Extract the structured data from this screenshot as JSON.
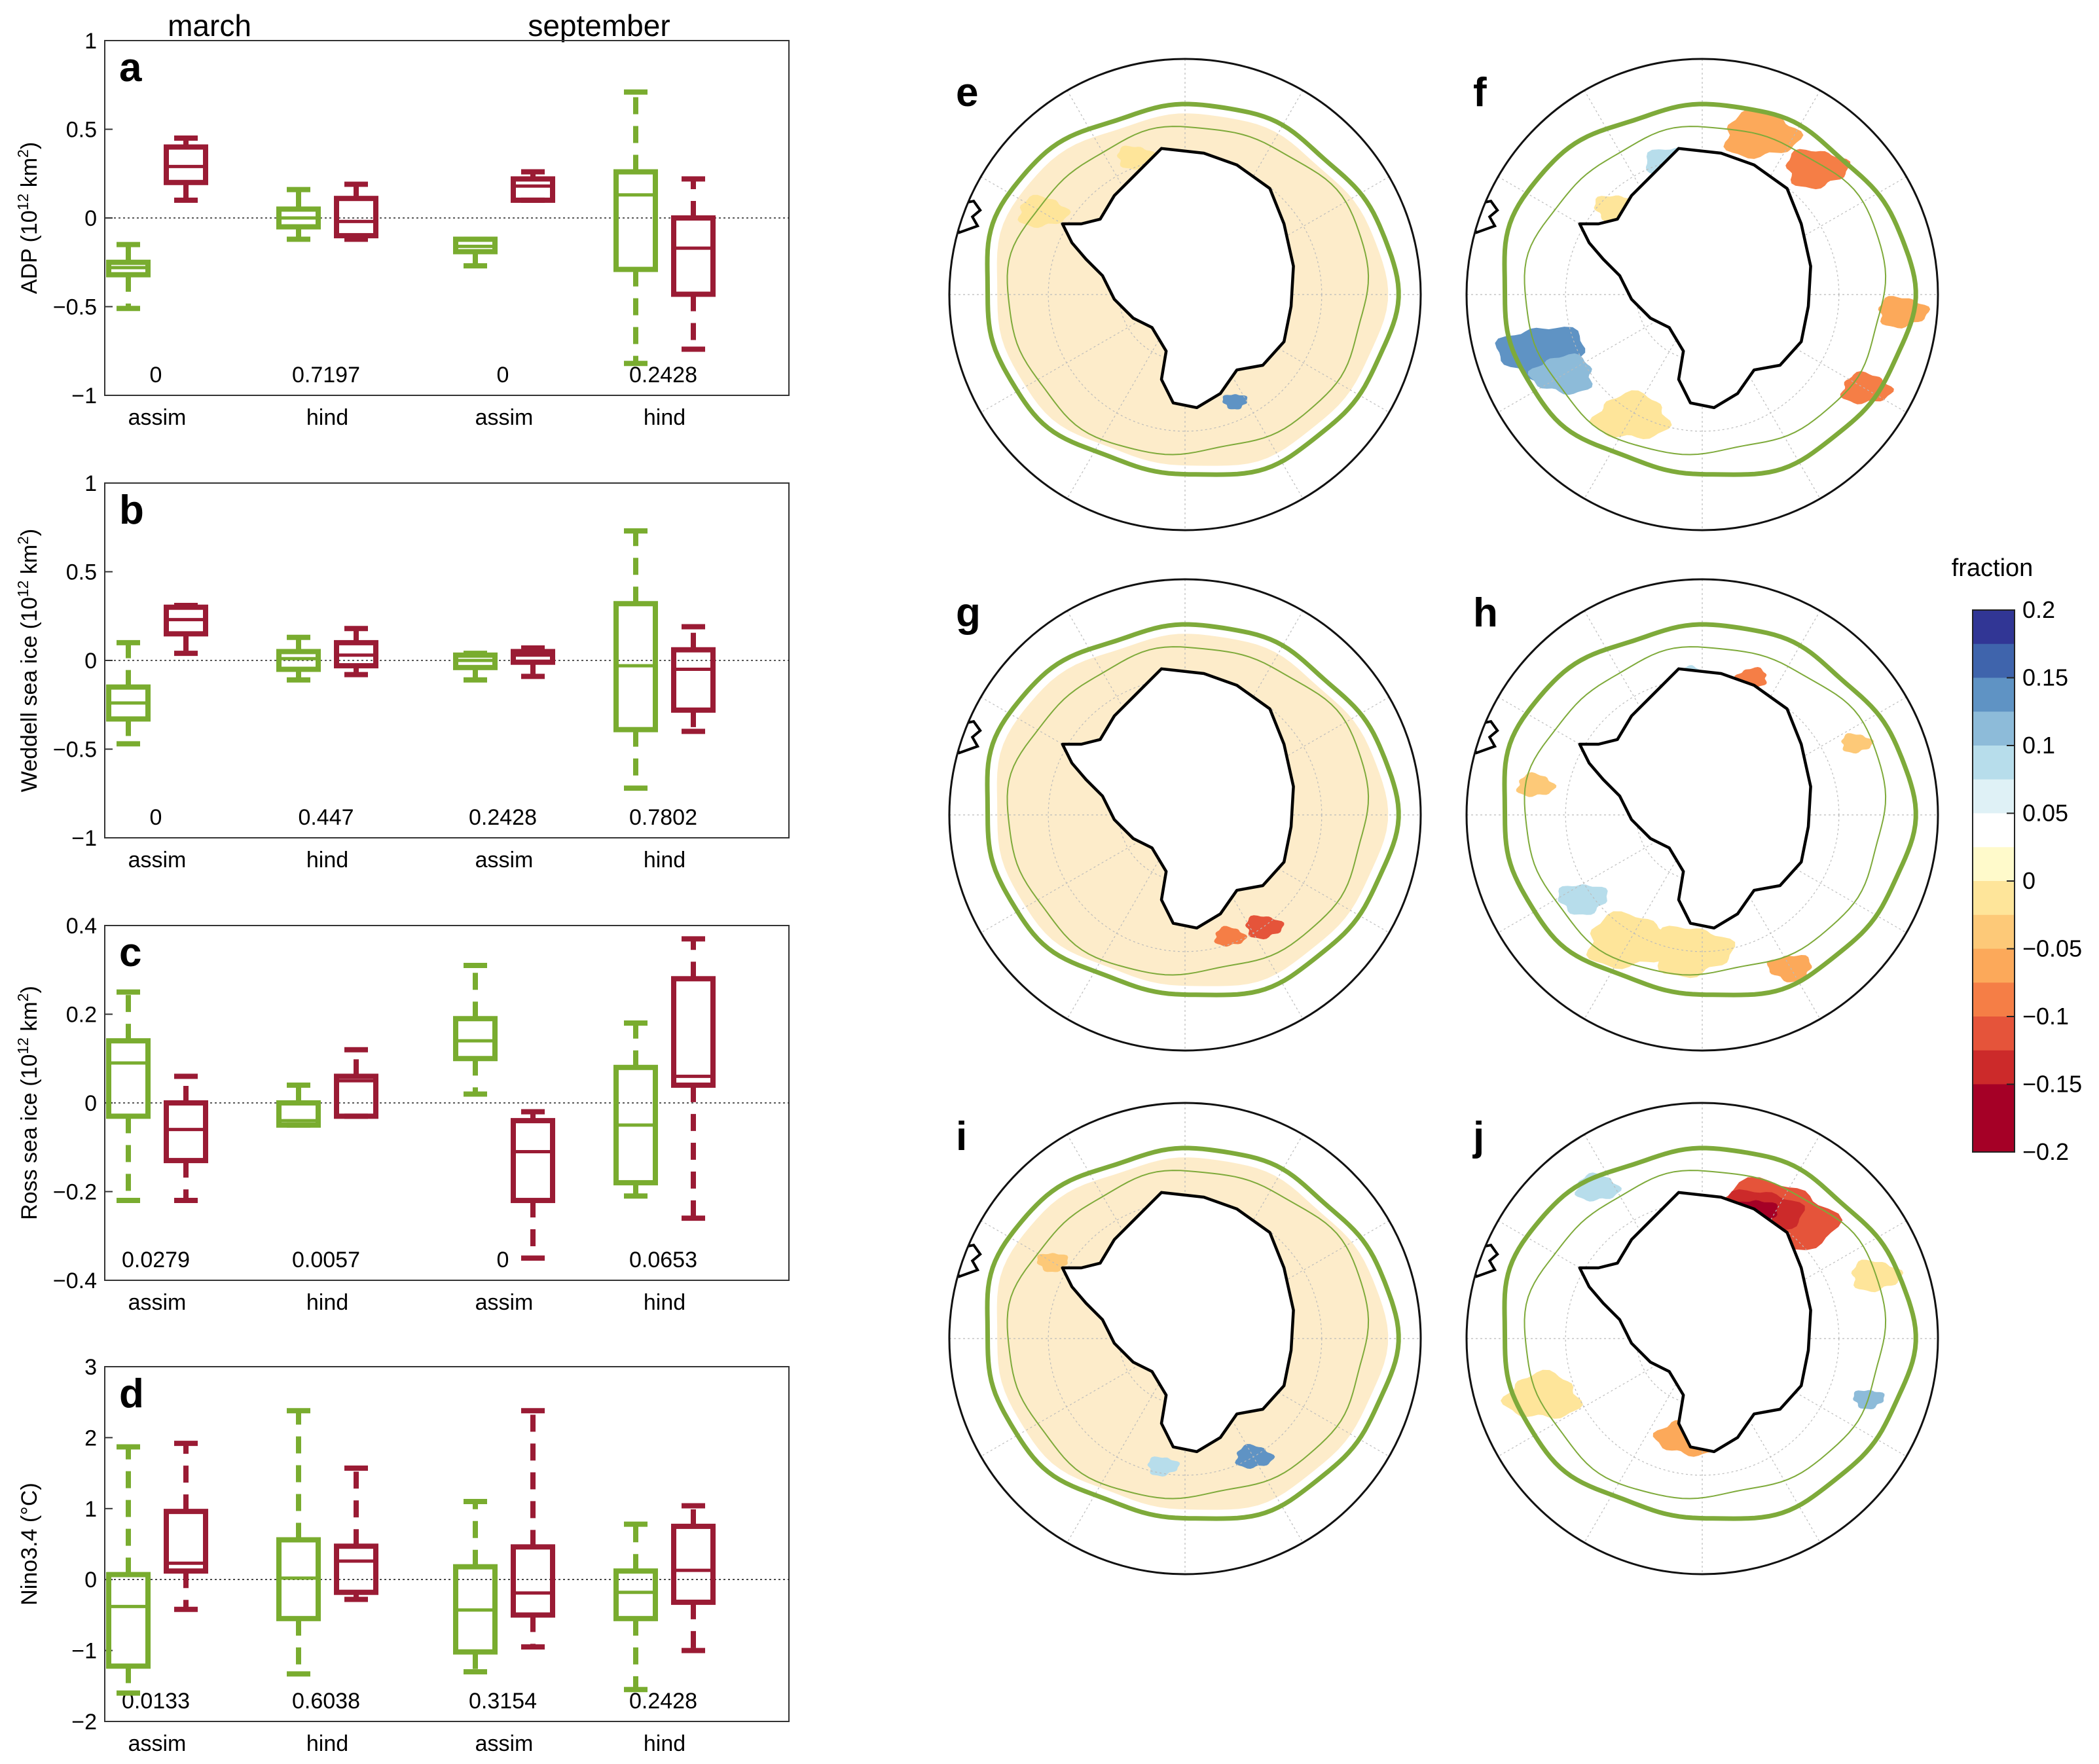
{
  "header": {
    "march": "march",
    "september": "september"
  },
  "colors": {
    "march": "#79AC2F",
    "september": "#9A1B34",
    "land": "#000000",
    "ice_edge": "#7EAA3A",
    "grid": "#BBBBBB"
  },
  "chart_data": [
    {
      "type": "box",
      "panel": "a",
      "ylabel_main": "ADP (10",
      "ylabel_sup": "12",
      "ylabel_unit": " km",
      "ylabel_sup2": "2",
      "ylabel_end": ")",
      "ylim": [
        -1,
        1
      ],
      "yticks": [
        -1,
        -0.5,
        0,
        0.5,
        1
      ],
      "ytick_labels": [
        "−1",
        "−0.5",
        "0",
        "0.5",
        "1"
      ],
      "groups": [
        "assim",
        "hind",
        "assim",
        "hind"
      ],
      "pvalues": [
        "0",
        "0.7197",
        "0",
        "0.2428"
      ],
      "series": [
        {
          "name": "march",
          "boxes": [
            {
              "min": -0.51,
              "q1": -0.32,
              "median": -0.28,
              "q3": -0.25,
              "max": -0.15
            },
            {
              "min": -0.12,
              "q1": -0.05,
              "median": 0.0,
              "q3": 0.05,
              "max": 0.16
            },
            {
              "min": -0.27,
              "q1": -0.19,
              "median": -0.16,
              "q3": -0.12,
              "max": -0.12
            },
            {
              "min": -0.82,
              "q1": -0.29,
              "median": 0.13,
              "q3": 0.26,
              "max": 0.71
            }
          ]
        },
        {
          "name": "september",
          "boxes": [
            {
              "min": 0.1,
              "q1": 0.2,
              "median": 0.29,
              "q3": 0.4,
              "max": 0.45
            },
            {
              "min": -0.12,
              "q1": -0.1,
              "median": -0.02,
              "q3": 0.11,
              "max": 0.19
            },
            {
              "min": 0.1,
              "q1": 0.1,
              "median": 0.18,
              "q3": 0.22,
              "max": 0.26
            },
            {
              "min": -0.74,
              "q1": -0.43,
              "median": -0.17,
              "q3": 0.0,
              "max": 0.22
            }
          ]
        }
      ]
    },
    {
      "type": "box",
      "panel": "b",
      "ylabel_main": "Weddell sea ice (10",
      "ylabel_sup": "12",
      "ylabel_unit": " km",
      "ylabel_sup2": "2",
      "ylabel_end": ")",
      "ylim": [
        -1,
        1
      ],
      "yticks": [
        -1,
        -0.5,
        0,
        0.5,
        1
      ],
      "ytick_labels": [
        "−1",
        "−0.5",
        "0",
        "0.5",
        "1"
      ],
      "groups": [
        "assim",
        "hind",
        "assim",
        "hind"
      ],
      "pvalues": [
        "0",
        "0.447",
        "0.2428",
        "0.7802"
      ],
      "series": [
        {
          "name": "march",
          "boxes": [
            {
              "min": -0.47,
              "q1": -0.33,
              "median": -0.24,
              "q3": -0.15,
              "max": 0.1
            },
            {
              "min": -0.11,
              "q1": -0.05,
              "median": 0.01,
              "q3": 0.05,
              "max": 0.13
            },
            {
              "min": -0.11,
              "q1": -0.04,
              "median": 0.0,
              "q3": 0.03,
              "max": 0.04
            },
            {
              "min": -0.72,
              "q1": -0.39,
              "median": -0.03,
              "q3": 0.32,
              "max": 0.73
            }
          ]
        },
        {
          "name": "september",
          "boxes": [
            {
              "min": 0.04,
              "q1": 0.15,
              "median": 0.23,
              "q3": 0.3,
              "max": 0.31
            },
            {
              "min": -0.08,
              "q1": -0.03,
              "median": 0.03,
              "q3": 0.1,
              "max": 0.18
            },
            {
              "min": -0.09,
              "q1": -0.01,
              "median": 0.03,
              "q3": 0.05,
              "max": 0.07
            },
            {
              "min": -0.4,
              "q1": -0.28,
              "median": -0.05,
              "q3": 0.06,
              "max": 0.19
            }
          ]
        }
      ]
    },
    {
      "type": "box",
      "panel": "c",
      "ylabel_main": "Ross sea ice (10",
      "ylabel_sup": "12",
      "ylabel_unit": " km",
      "ylabel_sup2": "2",
      "ylabel_end": ")",
      "ylim": [
        -0.4,
        0.4
      ],
      "yticks": [
        -0.4,
        -0.2,
        0,
        0.2,
        0.4
      ],
      "ytick_labels": [
        "−0.4",
        "−0.2",
        "0",
        "0.2",
        "0.4"
      ],
      "groups": [
        "assim",
        "hind",
        "assim",
        "hind"
      ],
      "pvalues": [
        "0.0279",
        "0.0057",
        "0",
        "0.0653"
      ],
      "series": [
        {
          "name": "march",
          "boxes": [
            {
              "min": -0.22,
              "q1": -0.03,
              "median": 0.09,
              "q3": 0.14,
              "max": 0.25
            },
            {
              "min": -0.05,
              "q1": -0.05,
              "median": -0.04,
              "q3": 0.0,
              "max": 0.04
            },
            {
              "min": 0.02,
              "q1": 0.1,
              "median": 0.14,
              "q3": 0.19,
              "max": 0.31
            },
            {
              "min": -0.21,
              "q1": -0.18,
              "median": -0.05,
              "q3": 0.08,
              "max": 0.18
            }
          ]
        },
        {
          "name": "september",
          "boxes": [
            {
              "min": -0.22,
              "q1": -0.13,
              "median": -0.06,
              "q3": 0.0,
              "max": 0.06
            },
            {
              "min": -0.03,
              "q1": -0.03,
              "median": 0.05,
              "q3": 0.06,
              "max": 0.12
            },
            {
              "min": -0.35,
              "q1": -0.22,
              "median": -0.11,
              "q3": -0.04,
              "max": -0.02
            },
            {
              "min": -0.26,
              "q1": 0.04,
              "median": 0.06,
              "q3": 0.28,
              "max": 0.37
            }
          ]
        }
      ]
    },
    {
      "type": "box",
      "panel": "d",
      "ylabel_main": "Nino3.4 (°C)",
      "ylabel_sup": "",
      "ylabel_unit": "",
      "ylabel_sup2": "",
      "ylabel_end": "",
      "ylim": [
        -2,
        3
      ],
      "yticks": [
        -2,
        -1,
        0,
        1,
        2,
        3
      ],
      "ytick_labels": [
        "−2",
        "−1",
        "0",
        "1",
        "2",
        "3"
      ],
      "groups": [
        "assim",
        "hind",
        "assim",
        "hind"
      ],
      "pvalues": [
        "0.0133",
        "0.6038",
        "0.3154",
        "0.2428"
      ],
      "series": [
        {
          "name": "march",
          "boxes": [
            {
              "min": -1.6,
              "q1": -1.22,
              "median": -0.38,
              "q3": 0.07,
              "max": 1.87
            },
            {
              "min": -1.33,
              "q1": -0.55,
              "median": 0.02,
              "q3": 0.56,
              "max": 2.38
            },
            {
              "min": -1.3,
              "q1": -1.02,
              "median": -0.43,
              "q3": 0.18,
              "max": 1.1
            },
            {
              "min": -1.55,
              "q1": -0.55,
              "median": -0.18,
              "q3": 0.12,
              "max": 0.78
            }
          ]
        },
        {
          "name": "september",
          "boxes": [
            {
              "min": -0.42,
              "q1": 0.12,
              "median": 0.23,
              "q3": 0.96,
              "max": 1.92
            },
            {
              "min": -0.28,
              "q1": -0.18,
              "median": 0.26,
              "q3": 0.47,
              "max": 1.57
            },
            {
              "min": -0.95,
              "q1": -0.5,
              "median": -0.19,
              "q3": 0.46,
              "max": 2.38
            },
            {
              "min": -1.0,
              "q1": -0.32,
              "median": 0.13,
              "q3": 0.75,
              "max": 1.04
            }
          ]
        }
      ]
    },
    {
      "type": "heatmap",
      "description_panels": [
        "e",
        "f",
        "g",
        "h",
        "i",
        "j"
      ],
      "colorbar": {
        "title": "fraction",
        "tick_labels": [
          "0.2",
          "0.15",
          "0.1",
          "0.05",
          "0",
          "−0.05",
          "−0.1",
          "−0.15",
          "−0.2"
        ],
        "levels": [
          0.2,
          0.175,
          0.15,
          0.125,
          0.1,
          0.075,
          0.05,
          0.025,
          0,
          -0.025,
          -0.05,
          -0.075,
          -0.1,
          -0.125,
          -0.15,
          -0.175,
          -0.2
        ],
        "colors": [
          "#313695",
          "#3F64AC",
          "#5F93C4",
          "#8DBBD9",
          "#B7DDEB",
          "#DFF1F6",
          "#FFFFFF",
          "#FFFACB",
          "#FEE59A",
          "#FDC978",
          "#FCA95A",
          "#F57E46",
          "#E5543A",
          "#CC2A2A",
          "#A50026",
          "#A50026"
        ],
        "clim": [
          -0.2,
          0.2
        ]
      }
    }
  ]
}
